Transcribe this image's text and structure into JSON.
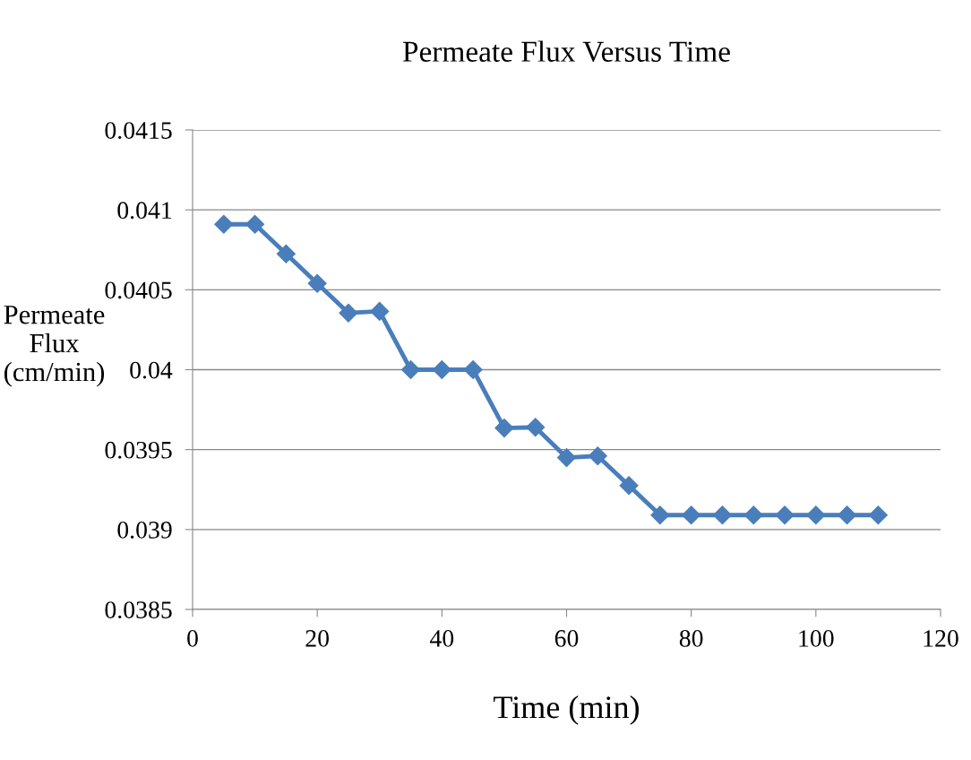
{
  "chart_data": {
    "type": "line",
    "title": "Permeate Flux Versus Time",
    "xlabel": "Time (min)",
    "ylabel": "Permeate\nFlux\n(cm/min)",
    "x": [
      5,
      10,
      15,
      20,
      25,
      30,
      35,
      40,
      45,
      50,
      55,
      60,
      65,
      70,
      75,
      80,
      85,
      90,
      95,
      100,
      105,
      110
    ],
    "series": [
      {
        "color": "#4a7ebb",
        "values": [
          0.04091,
          0.04091,
          0.040725,
          0.04054,
          0.040355,
          0.040365,
          0.04,
          0.04,
          0.04,
          0.039635,
          0.03964,
          0.03945,
          0.03946,
          0.039275,
          0.03909,
          0.03909,
          0.03909,
          0.03909,
          0.03909,
          0.03909,
          0.03909,
          0.03909
        ]
      }
    ],
    "xlim": [
      0,
      120
    ],
    "xticks": [
      0,
      20,
      40,
      60,
      80,
      100,
      120
    ],
    "ylim": [
      0.0385,
      0.0415
    ],
    "yticks": [
      0.0385,
      0.039,
      0.0395,
      0.04,
      0.0405,
      0.041,
      0.0415
    ],
    "grid": "y",
    "legend": false,
    "marker": "diamond",
    "line_style": "solid"
  }
}
